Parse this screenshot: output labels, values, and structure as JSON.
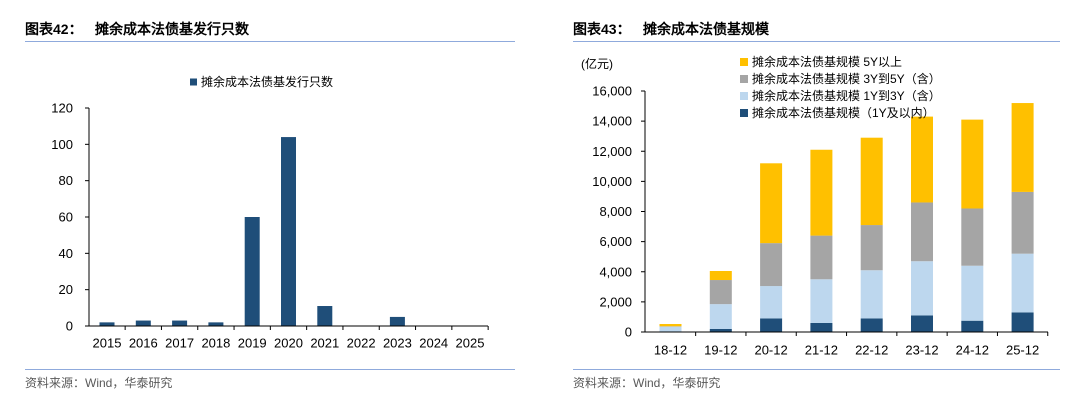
{
  "panels": [
    {
      "label": "图表42：",
      "source": "资料来源：Wind，华泰研究"
    },
    {
      "label": "图表43：",
      "source": "资料来源：Wind，华泰研究"
    }
  ],
  "colors": {
    "rule": "#8faadc",
    "source_text": "#595959",
    "axis": "#000000"
  },
  "chart_data": [
    {
      "type": "bar",
      "title": "摊余成本法债基发行只数",
      "categories": [
        "2015",
        "2016",
        "2017",
        "2018",
        "2019",
        "2020",
        "2021",
        "2022",
        "2023",
        "2024",
        "2025"
      ],
      "series": [
        {
          "name": "摊余成本法债基发行只数",
          "values": [
            2,
            3,
            3,
            2,
            60,
            104,
            11,
            0,
            5,
            0,
            0
          ],
          "color": "#1f4e79"
        }
      ],
      "ylim": [
        0,
        120
      ],
      "yticks": [
        0,
        20,
        40,
        60,
        80,
        100,
        120
      ],
      "ytick_labels": [
        "0",
        "20",
        "40",
        "60",
        "80",
        "100",
        "120"
      ],
      "legend": "top-center",
      "grid": false
    },
    {
      "type": "bar",
      "stacked": true,
      "title": "摊余成本法债基规模",
      "ylabel": "(亿元)",
      "categories": [
        "18-12",
        "19-12",
        "20-12",
        "21-12",
        "22-12",
        "23-12",
        "24-12",
        "25-12"
      ],
      "series": [
        {
          "name": "摊余成本法债基规模（1Y及以内）",
          "values": [
            20,
            200,
            900,
            600,
            900,
            1100,
            750,
            1300
          ],
          "color": "#1f4e79"
        },
        {
          "name": "摊余成本法债基规模 1Y到3Y（含）",
          "values": [
            330,
            1650,
            2150,
            2900,
            3200,
            3600,
            3650,
            3900
          ],
          "color": "#bdd7ee"
        },
        {
          "name": "摊余成本法债基规模 3Y到5Y（含）",
          "values": [
            30,
            1600,
            2850,
            2900,
            3000,
            3900,
            3800,
            4100
          ],
          "color": "#a5a5a5"
        },
        {
          "name": "摊余成本法债基规模 5Y以上",
          "values": [
            150,
            600,
            5300,
            5700,
            5800,
            5700,
            5900,
            5900
          ],
          "color": "#ffc000"
        }
      ],
      "ylim": [
        0,
        16000
      ],
      "yticks": [
        0,
        2000,
        4000,
        6000,
        8000,
        10000,
        12000,
        14000,
        16000
      ],
      "ytick_labels": [
        "0",
        "2,000",
        "4,000",
        "6,000",
        "8,000",
        "10,000",
        "12,000",
        "14,000",
        "16,000"
      ],
      "legend": "top-center",
      "grid": false
    }
  ]
}
